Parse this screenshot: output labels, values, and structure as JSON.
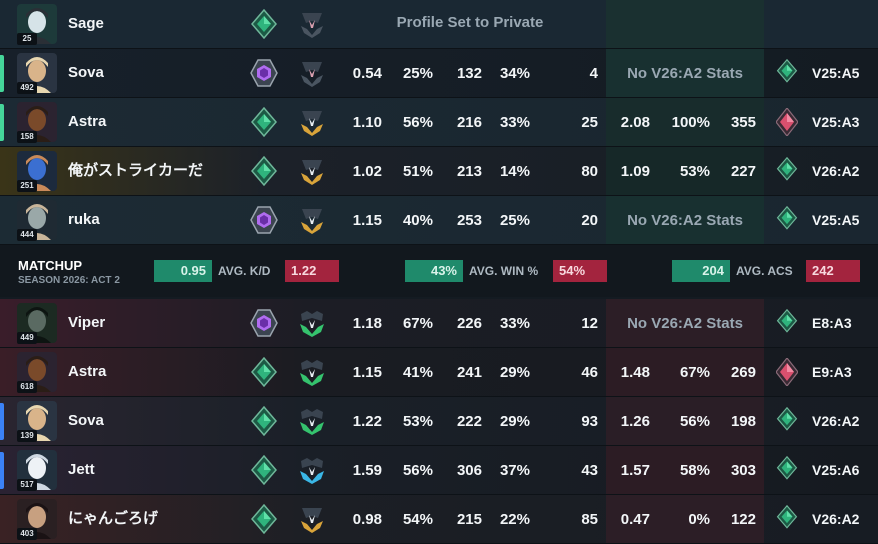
{
  "colors": {
    "ally_accent": "#1f8a6b",
    "enemy_accent": "#a3243e",
    "party_green": "#45d69a",
    "party_blue": "#3b82f6"
  },
  "matchup": {
    "title": "MATCHUP",
    "subtitle": "SEASON 2026: ACT 2",
    "kd": {
      "ally": "0.95",
      "label": "AVG. K/D",
      "enemy": "1.22"
    },
    "win": {
      "ally": "43%",
      "label": "AVG. WIN %",
      "enemy": "54%"
    },
    "acs": {
      "ally": "204",
      "label": "AVG. ACS",
      "enemy": "242"
    }
  },
  "ally_players": [
    {
      "name": "Sage",
      "level": "25",
      "private": true,
      "private_text": "Profile Set to Private",
      "rank_icon": "emerald-rank-icon",
      "peak_icon": "unranked-rank-icon"
    },
    {
      "name": "Sova",
      "level": "492",
      "kd": "0.54",
      "hs": "25%",
      "acs": "132",
      "wr": "34%",
      "games": "4",
      "no_stats": "No V26:A2 Stats",
      "peak_act": "V25:A5",
      "rank_icon": "ascendant-rank-icon",
      "peak_icon": "unranked-rank-icon",
      "peak_rank_icon": "emerald-rank-icon"
    },
    {
      "name": "Astra",
      "level": "158",
      "kd": "1.10",
      "hs": "56%",
      "acs": "216",
      "wr": "33%",
      "games": "25",
      "kd2": "2.08",
      "wr2": "100%",
      "acs2": "355",
      "peak_act": "V25:A3",
      "rank_icon": "emerald-rank-icon",
      "peak_icon": "gold-rank-icon",
      "peak_rank_icon": "immortal-rank-icon"
    },
    {
      "name": "俺がストライカーだ",
      "level": "251",
      "kd": "1.02",
      "hs": "51%",
      "acs": "213",
      "wr": "14%",
      "games": "80",
      "kd2": "1.09",
      "wr2": "53%",
      "acs2": "227",
      "peak_act": "V26:A2",
      "rank_icon": "emerald-rank-icon",
      "peak_icon": "gold-rank-icon",
      "peak_rank_icon": "emerald-rank-icon"
    },
    {
      "name": "ruka",
      "level": "444",
      "kd": "1.15",
      "hs": "40%",
      "acs": "253",
      "wr": "25%",
      "games": "20",
      "no_stats": "No V26:A2 Stats",
      "peak_act": "V25:A5",
      "rank_icon": "ascendant-rank-icon",
      "peak_icon": "gold-rank-icon",
      "peak_rank_icon": "emerald-rank-icon"
    }
  ],
  "enemy_players": [
    {
      "name": "Viper",
      "level": "449",
      "kd": "1.18",
      "hs": "67%",
      "acs": "226",
      "wr": "33%",
      "games": "12",
      "no_stats": "No V26:A2 Stats",
      "peak_act": "E8:A3",
      "rank_icon": "ascendant-rank-icon",
      "peak_icon": "emerald-peak-icon",
      "peak_rank_icon": "emerald-rank-icon"
    },
    {
      "name": "Astra",
      "level": "618",
      "kd": "1.15",
      "hs": "41%",
      "acs": "241",
      "wr": "29%",
      "games": "46",
      "kd2": "1.48",
      "wr2": "67%",
      "acs2": "269",
      "peak_act": "E9:A3",
      "rank_icon": "emerald-rank-icon",
      "peak_icon": "emerald-peak-icon",
      "peak_rank_icon": "immortal-rank-icon"
    },
    {
      "name": "Sova",
      "level": "139",
      "kd": "1.22",
      "hs": "53%",
      "acs": "222",
      "wr": "29%",
      "games": "93",
      "kd2": "1.26",
      "wr2": "56%",
      "acs2": "198",
      "peak_act": "V26:A2",
      "rank_icon": "emerald-rank-icon",
      "peak_icon": "emerald-peak-icon",
      "peak_rank_icon": "emerald-rank-icon"
    },
    {
      "name": "Jett",
      "level": "517",
      "kd": "1.59",
      "hs": "56%",
      "acs": "306",
      "wr": "37%",
      "games": "43",
      "kd2": "1.57",
      "wr2": "58%",
      "acs2": "303",
      "peak_act": "V25:A6",
      "rank_icon": "emerald-rank-icon",
      "peak_icon": "diamond-peak-icon",
      "peak_rank_icon": "emerald-rank-icon"
    },
    {
      "name": "にゃんごろげ",
      "level": "403",
      "kd": "0.98",
      "hs": "54%",
      "acs": "215",
      "wr": "22%",
      "games": "85",
      "kd2": "0.47",
      "wr2": "0%",
      "acs2": "122",
      "peak_act": "V26:A2",
      "rank_icon": "emerald-rank-icon",
      "peak_icon": "gold-rank-icon",
      "peak_rank_icon": "emerald-rank-icon"
    }
  ]
}
